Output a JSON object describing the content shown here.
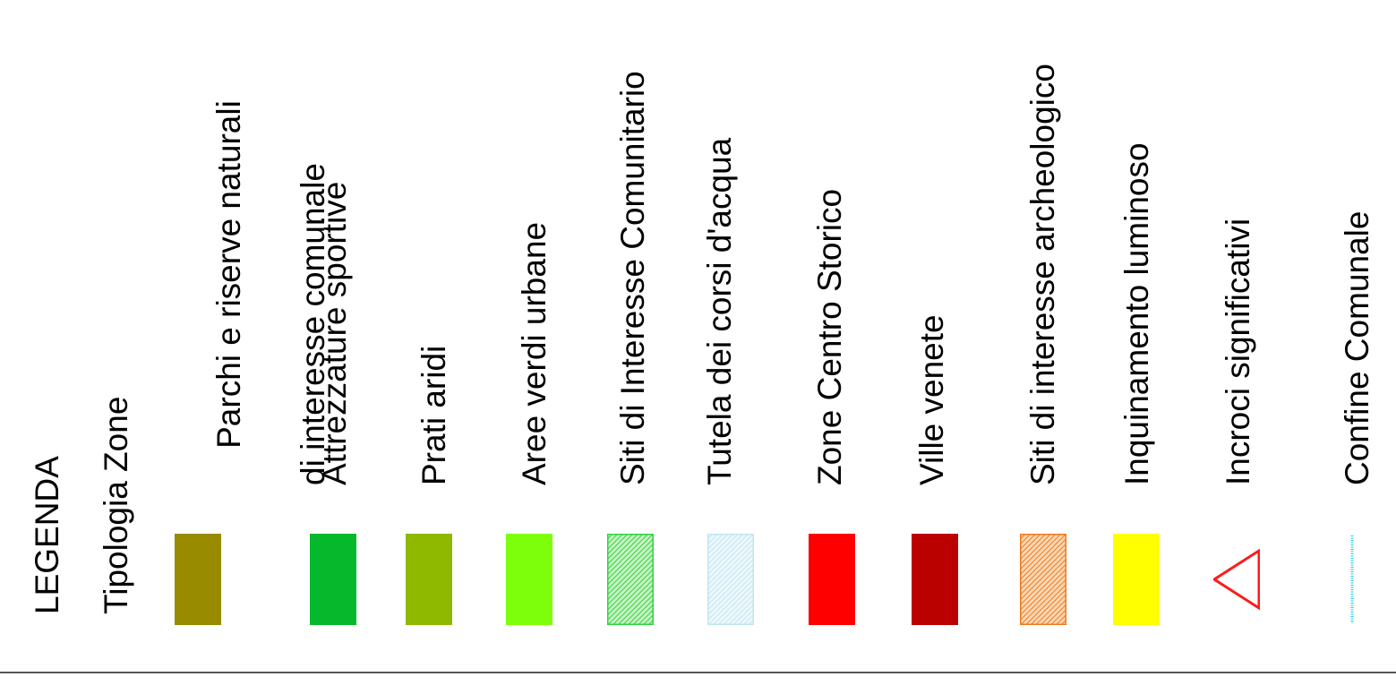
{
  "legend": {
    "title": "LEGENDA",
    "subtitle": "Tipologia Zone",
    "items": [
      {
        "id": "parchi",
        "label_line1": "Parchi e riserve naturali",
        "label_line2": "di interesse comunale",
        "symbol": "fill",
        "color": "#988b00"
      },
      {
        "id": "attrezzature",
        "label_line1": "Attrezzature sportive",
        "symbol": "fill",
        "color": "#06b82b"
      },
      {
        "id": "prati",
        "label_line1": "Prati aridi",
        "symbol": "fill",
        "color": "#8fb800"
      },
      {
        "id": "aree-verdi",
        "label_line1": "Aree verdi urbane",
        "symbol": "fill",
        "color": "#7dff0b"
      },
      {
        "id": "sic",
        "label_line1": "Siti di Interesse Comunitario",
        "symbol": "hatch",
        "color": "#2fd43f",
        "bg": "#c9f3c4"
      },
      {
        "id": "corsi-acqua",
        "label_line1": "Tutela dei corsi d'acqua",
        "symbol": "hatch",
        "color": "#bfe6f2",
        "bg": "#eef8fb"
      },
      {
        "id": "centro-storico",
        "label_line1": "Zone Centro Storico",
        "symbol": "fill",
        "color": "#ff0000"
      },
      {
        "id": "ville",
        "label_line1": "Ville venete",
        "symbol": "fill",
        "color": "#bb0000"
      },
      {
        "id": "archeologici",
        "label_line1": "Siti di interesse archeologico",
        "symbol": "hatch",
        "color": "#ee7a1e",
        "bg": "#fbd7b4"
      },
      {
        "id": "inquinamento",
        "label_line1": "Inquinamento luminoso",
        "symbol": "fill",
        "color": "#ffff00"
      },
      {
        "id": "incroci",
        "label_line1": "Incroci significativi",
        "symbol": "triangle",
        "color": "#ff1a1a"
      },
      {
        "id": "confine",
        "label_line1": "Confine Comunale",
        "symbol": "line",
        "color": "#1ec8e8"
      }
    ]
  }
}
